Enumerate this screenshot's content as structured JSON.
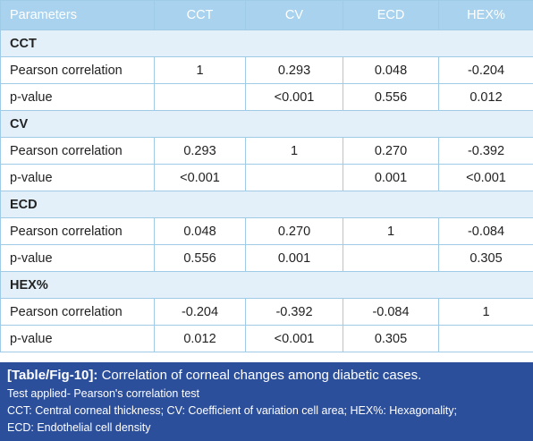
{
  "table": {
    "header": [
      "Parameters",
      "CCT",
      "CV",
      "ECD",
      "HEX%"
    ],
    "groups": [
      {
        "name": "CCT",
        "rows": [
          [
            "Pearson correlation",
            "1",
            "0.293",
            "0.048",
            "-0.204"
          ],
          [
            "p-value",
            null,
            "<0.001",
            "0.556",
            "0.012"
          ]
        ]
      },
      {
        "name": "CV",
        "rows": [
          [
            "Pearson correlation",
            "0.293",
            "1",
            "0.270",
            "-0.392"
          ],
          [
            "p-value",
            "<0.001",
            null,
            "0.001",
            "<0.001"
          ]
        ]
      },
      {
        "name": "ECD",
        "rows": [
          [
            "Pearson correlation",
            "0.048",
            "0.270",
            "1",
            "-0.084"
          ],
          [
            "p-value",
            "0.556",
            "0.001",
            null,
            "0.305"
          ]
        ]
      },
      {
        "name": "HEX%",
        "rows": [
          [
            "Pearson correlation",
            "-0.204",
            "-0.392",
            "-0.084",
            "1"
          ],
          [
            "p-value",
            "0.012",
            "<0.001",
            "0.305",
            null
          ]
        ]
      }
    ]
  },
  "caption": {
    "label": "[Table/Fig-10]:",
    "title": "Correlation of corneal changes among diabetic cases.",
    "notes": [
      "Test applied- Pearson's correlation test",
      "CCT: Central corneal thickness; CV: Coefficient of variation cell area; HEX%: Hexagonality;",
      "ECD: Endothelial cell density"
    ]
  }
}
